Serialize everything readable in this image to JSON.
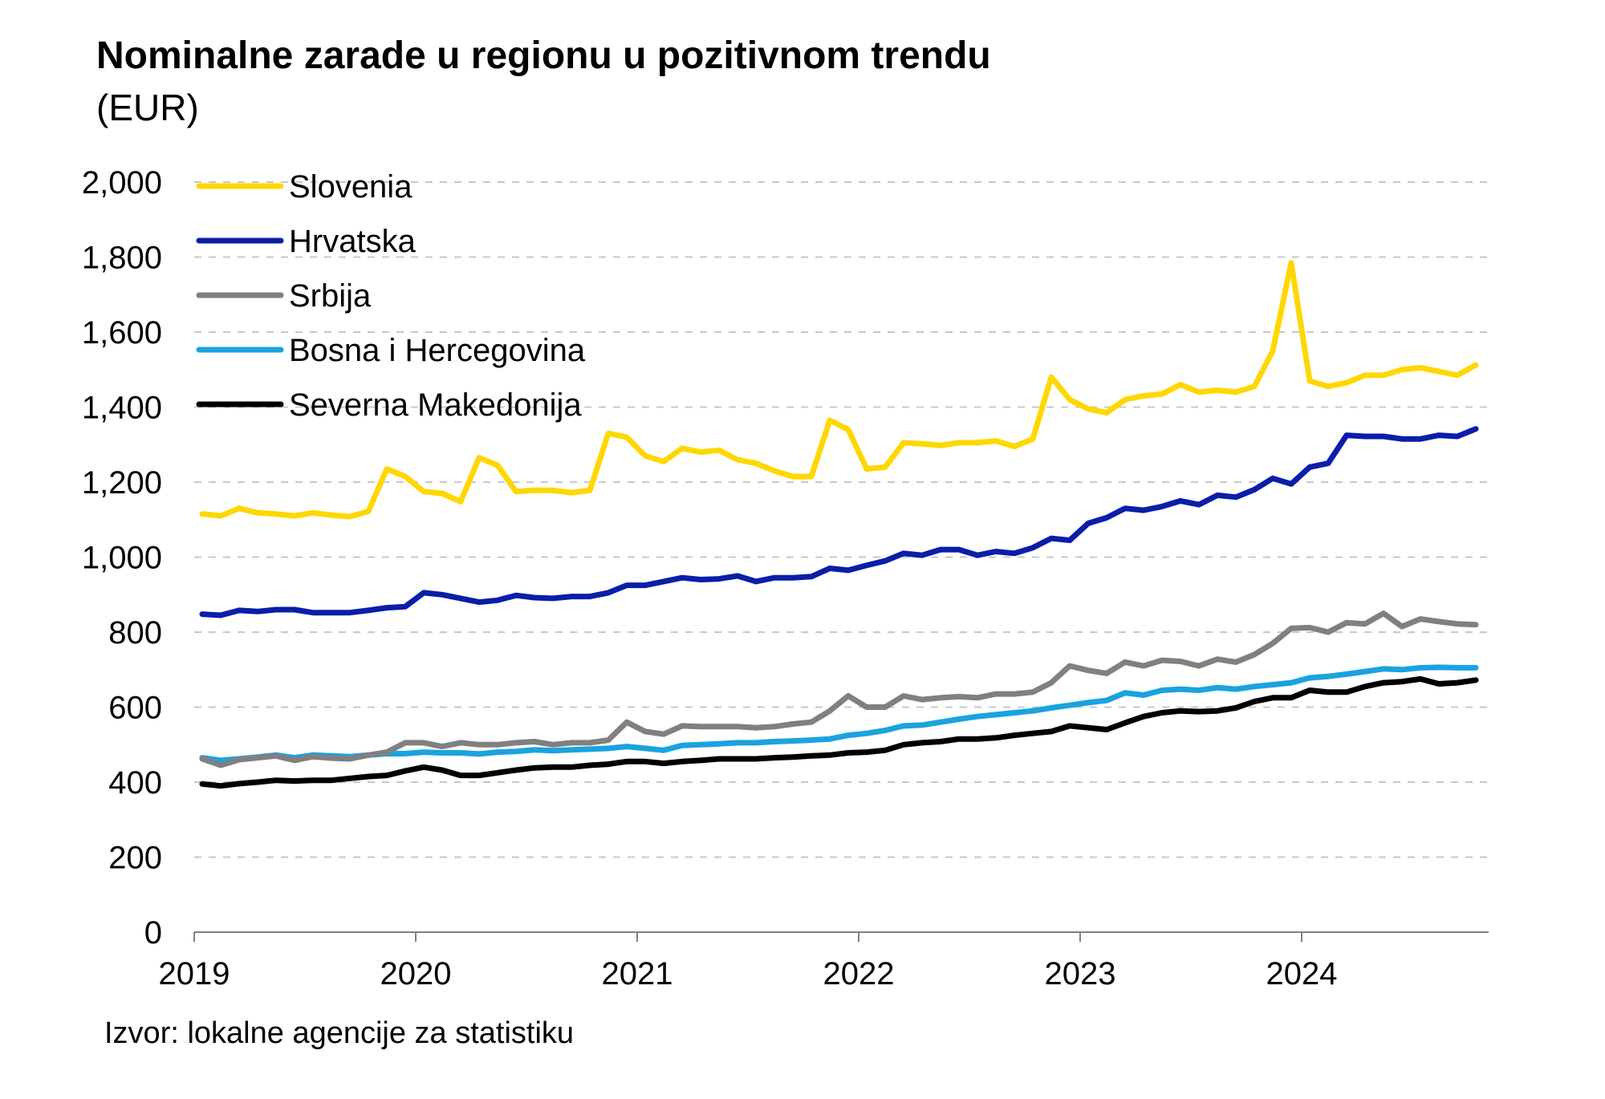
{
  "chart_data": {
    "type": "line",
    "title": "Nominalne zarade u regionu u pozitivnom trendu",
    "subtitle": "(EUR)",
    "source": "Izvor: lokalne agencije za statistiku",
    "x_start": "2019-01",
    "x_labels": [
      "2019",
      "2020",
      "2021",
      "2022",
      "2023",
      "2024"
    ],
    "y_ticks": [
      "0",
      "200",
      "400",
      "600",
      "800",
      "1,000",
      "1,200",
      "1,400",
      "1,600",
      "1,800",
      "2,000"
    ],
    "ylim": [
      0,
      2000
    ],
    "grid": true,
    "legend_position": "top-left",
    "series": [
      {
        "name": "Slovenia",
        "color": "#FFD700",
        "values": [
          1115,
          1110,
          1130,
          1118,
          1115,
          1110,
          1118,
          1112,
          1108,
          1122,
          1235,
          1215,
          1175,
          1170,
          1148,
          1265,
          1245,
          1175,
          1178,
          1178,
          1172,
          1178,
          1330,
          1320,
          1270,
          1255,
          1290,
          1280,
          1285,
          1260,
          1250,
          1230,
          1215,
          1215,
          1365,
          1340,
          1235,
          1240,
          1305,
          1302,
          1298,
          1305,
          1305,
          1310,
          1295,
          1315,
          1480,
          1420,
          1395,
          1385,
          1420,
          1430,
          1435,
          1460,
          1440,
          1445,
          1440,
          1455,
          1550,
          1785,
          1470,
          1455,
          1465,
          1485,
          1485,
          1500,
          1505,
          1495,
          1485,
          1512
        ]
      },
      {
        "name": "Hrvatska",
        "color": "#0A1EA8",
        "values": [
          848,
          845,
          858,
          855,
          860,
          860,
          852,
          852,
          852,
          858,
          865,
          868,
          905,
          900,
          890,
          880,
          885,
          898,
          892,
          890,
          895,
          895,
          905,
          925,
          925,
          935,
          945,
          940,
          942,
          950,
          935,
          945,
          945,
          948,
          970,
          965,
          978,
          990,
          1010,
          1005,
          1020,
          1020,
          1005,
          1015,
          1010,
          1025,
          1050,
          1045,
          1090,
          1105,
          1130,
          1125,
          1135,
          1150,
          1140,
          1165,
          1160,
          1180,
          1210,
          1195,
          1240,
          1250,
          1325,
          1322,
          1322,
          1315,
          1315,
          1325,
          1322,
          1342
        ]
      },
      {
        "name": "Srbija",
        "color": "#808080",
        "values": [
          462,
          445,
          460,
          465,
          470,
          458,
          468,
          464,
          462,
          472,
          480,
          505,
          505,
          495,
          505,
          500,
          500,
          505,
          508,
          500,
          505,
          505,
          512,
          560,
          535,
          528,
          550,
          548,
          548,
          548,
          545,
          548,
          555,
          560,
          590,
          630,
          600,
          600,
          630,
          620,
          625,
          628,
          625,
          635,
          635,
          640,
          665,
          710,
          698,
          690,
          720,
          710,
          725,
          722,
          710,
          728,
          720,
          740,
          770,
          810,
          812,
          800,
          825,
          822,
          850,
          815,
          835,
          828,
          822,
          820
        ]
      },
      {
        "name": "Bosna i Hercegovina",
        "color": "#1AA3DE",
        "values": [
          465,
          458,
          462,
          467,
          472,
          465,
          472,
          470,
          468,
          472,
          476,
          476,
          480,
          478,
          478,
          475,
          480,
          482,
          486,
          484,
          486,
          488,
          490,
          495,
          490,
          485,
          498,
          500,
          502,
          505,
          505,
          508,
          510,
          512,
          515,
          525,
          530,
          538,
          550,
          552,
          560,
          568,
          575,
          580,
          585,
          590,
          598,
          605,
          612,
          618,
          638,
          632,
          645,
          648,
          645,
          652,
          648,
          655,
          660,
          665,
          678,
          682,
          688,
          695,
          702,
          700,
          705,
          706,
          705,
          705
        ]
      },
      {
        "name": "Severna Makedonija",
        "color": "#000000",
        "values": [
          395,
          390,
          396,
          400,
          405,
          403,
          405,
          405,
          410,
          415,
          418,
          430,
          440,
          432,
          418,
          418,
          425,
          432,
          438,
          440,
          440,
          445,
          448,
          455,
          455,
          450,
          455,
          458,
          462,
          462,
          462,
          465,
          467,
          470,
          472,
          478,
          480,
          485,
          500,
          505,
          508,
          515,
          515,
          518,
          525,
          530,
          535,
          550,
          545,
          540,
          558,
          575,
          585,
          590,
          588,
          590,
          598,
          615,
          625,
          625,
          645,
          640,
          640,
          655,
          665,
          668,
          675,
          662,
          665,
          672
        ]
      }
    ]
  }
}
